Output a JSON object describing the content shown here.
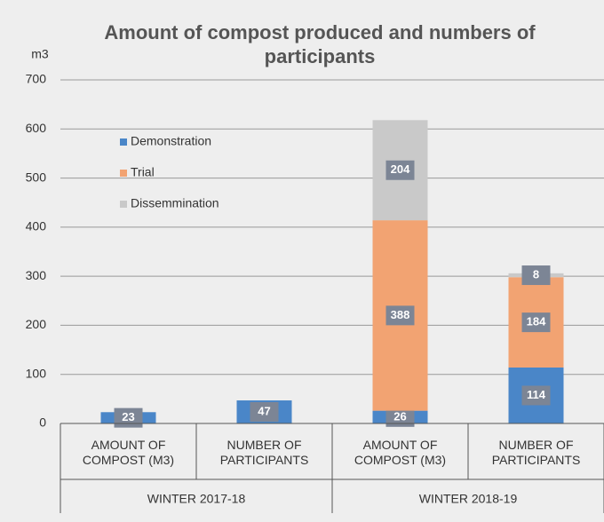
{
  "chart_data": {
    "type": "stacked_bar",
    "title": "Amount of compost produced and numbers of participants",
    "y_label": "m3",
    "categories": [
      "AMOUNT OF COMPOST (M3)",
      "NUMBER OF PARTICIPANTS",
      "AMOUNT OF COMPOST (M3)",
      "NUMBER OF PARTICIPANTS"
    ],
    "groups": [
      "WINTER 2017-18",
      "WINTER 2018-19"
    ],
    "series": [
      {
        "name": "Demonstration",
        "color": "#4a86c8",
        "values": [
          23,
          47,
          26,
          114
        ]
      },
      {
        "name": "Trial",
        "color": "#f2a372",
        "values": [
          null,
          null,
          388,
          184
        ]
      },
      {
        "name": "Dissemmination",
        "color": "#c9c9c9",
        "values": [
          null,
          null,
          204,
          8
        ]
      }
    ],
    "ylim": [
      0,
      700
    ],
    "yticks": [
      0,
      100,
      200,
      300,
      400,
      500,
      600,
      700
    ],
    "grid": true,
    "legend": "upper-left"
  }
}
